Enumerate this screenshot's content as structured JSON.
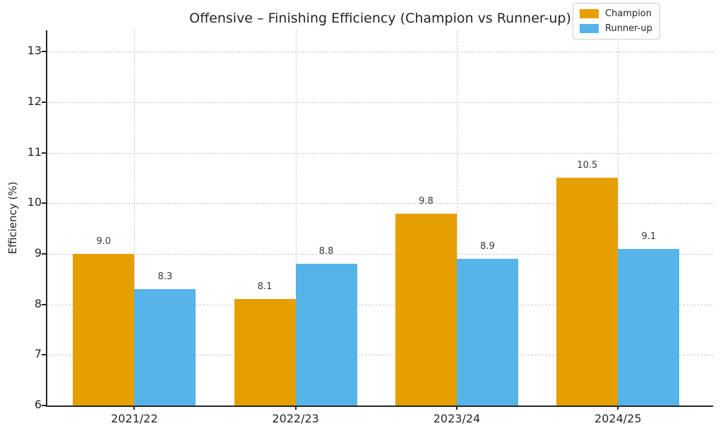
{
  "title": "Offensive – Finishing Efficiency (Champion vs Runner-up)",
  "chart_data": {
    "type": "bar",
    "title": "Offensive – Finishing Efficiency (Champion vs Runner-up)",
    "xlabel": "",
    "ylabel": "Efficiency (%)",
    "categories": [
      "2021/22",
      "2022/23",
      "2023/24",
      "2024/25"
    ],
    "series": [
      {
        "name": "Champion",
        "color": "#E69F00",
        "values": [
          9.0,
          8.1,
          9.8,
          10.5
        ],
        "labels": [
          "9.0",
          "8.1",
          "9.8",
          "10.5"
        ]
      },
      {
        "name": "Runner-up",
        "color": "#56B4E9",
        "values": [
          8.3,
          8.8,
          8.9,
          9.1
        ],
        "labels": [
          "8.3",
          "8.8",
          "8.9",
          "9.1"
        ]
      }
    ],
    "ylim": [
      6,
      13.42
    ],
    "yticks": [
      6,
      7,
      8,
      9,
      10,
      11,
      12,
      13
    ],
    "grid": true,
    "grid_style": "dashed",
    "legend_position": "upper right",
    "bar_value_labels": true,
    "colors": {
      "champion": "#E69F00",
      "runner_up": "#56B4E9",
      "grid": "#cccccc",
      "spine": "#262626",
      "text": "#262626"
    }
  }
}
